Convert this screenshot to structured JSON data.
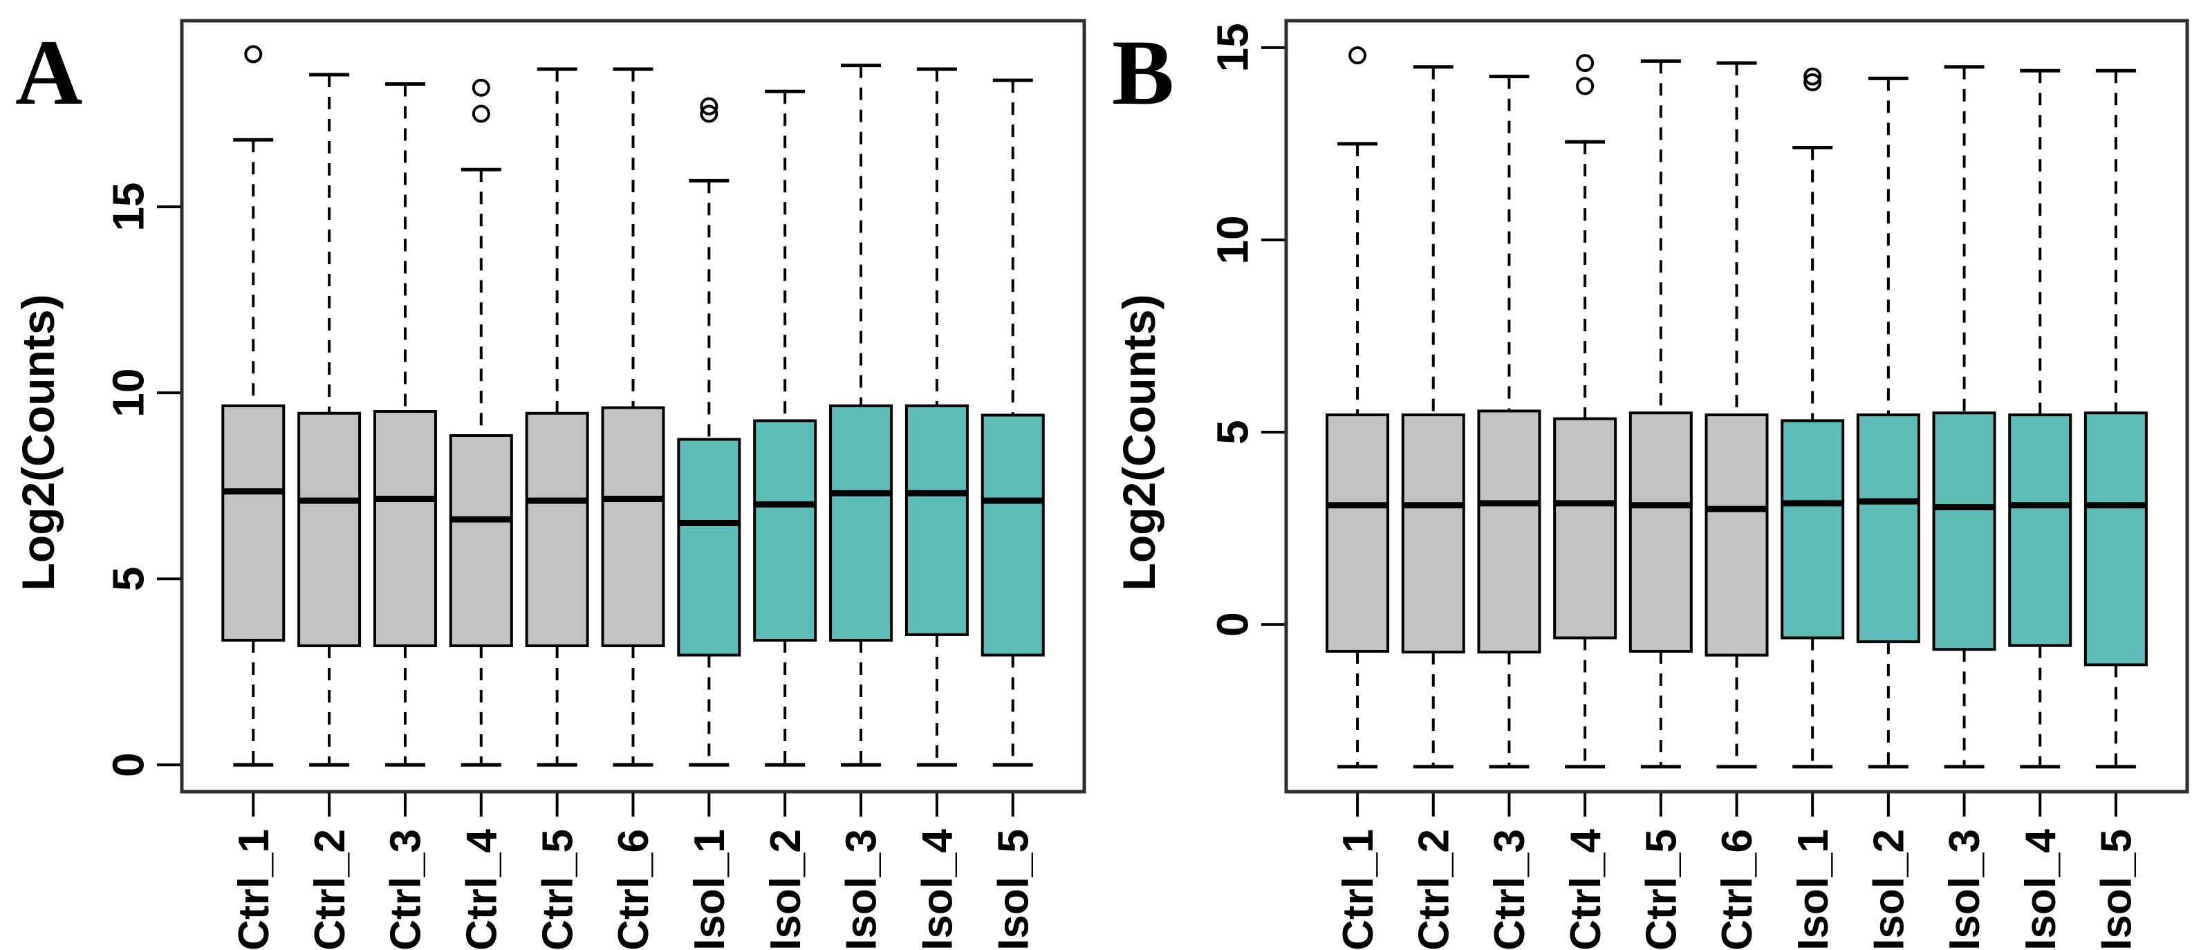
{
  "figure": {
    "background_color": "#ffffff",
    "panel_count": 2
  },
  "style": {
    "control_box_fill": "#C2C2C2",
    "isolation_box_fill": "#5EBDB9",
    "line_color": "#000000",
    "frame_color": "#2e2e2e"
  },
  "chart_data": [
    {
      "type": "boxplot",
      "panel_label": "A",
      "ylabel": "Log2(Counts)",
      "yticks": [
        0,
        5,
        10,
        15
      ],
      "ylim": [
        -0.72,
        20.0
      ],
      "grid": false,
      "categories": [
        "Ctrl_1",
        "Ctrl_2",
        "Ctrl_3",
        "Ctrl_4",
        "Ctrl_5",
        "Ctrl_6",
        "Isol_1",
        "Isol_2",
        "Isol_3",
        "Isol_4",
        "Isol_5"
      ],
      "boxes": [
        {
          "label": "Ctrl_1",
          "group": "control",
          "whisker_low": 0.0,
          "q1": 3.35,
          "median": 7.35,
          "q3": 9.65,
          "whisker_high": 16.8,
          "outliers": [
            19.1
          ]
        },
        {
          "label": "Ctrl_2",
          "group": "control",
          "whisker_low": 0.0,
          "q1": 3.2,
          "median": 7.1,
          "q3": 9.45,
          "whisker_high": 18.55,
          "outliers": []
        },
        {
          "label": "Ctrl_3",
          "group": "control",
          "whisker_low": 0.0,
          "q1": 3.2,
          "median": 7.15,
          "q3": 9.5,
          "whisker_high": 18.3,
          "outliers": []
        },
        {
          "label": "Ctrl_4",
          "group": "control",
          "whisker_low": 0.0,
          "q1": 3.2,
          "median": 6.6,
          "q3": 8.85,
          "whisker_high": 16.0,
          "outliers": [
            18.2,
            17.5
          ]
        },
        {
          "label": "Ctrl_5",
          "group": "control",
          "whisker_low": 0.0,
          "q1": 3.2,
          "median": 7.1,
          "q3": 9.45,
          "whisker_high": 18.7,
          "outliers": []
        },
        {
          "label": "Ctrl_6",
          "group": "control",
          "whisker_low": 0.0,
          "q1": 3.2,
          "median": 7.15,
          "q3": 9.6,
          "whisker_high": 18.7,
          "outliers": []
        },
        {
          "label": "Isol_1",
          "group": "isolation",
          "whisker_low": 0.0,
          "q1": 2.95,
          "median": 6.5,
          "q3": 8.75,
          "whisker_high": 15.7,
          "outliers": [
            17.7,
            17.5
          ]
        },
        {
          "label": "Isol_2",
          "group": "isolation",
          "whisker_low": 0.0,
          "q1": 3.35,
          "median": 7.0,
          "q3": 9.25,
          "whisker_high": 18.1,
          "outliers": []
        },
        {
          "label": "Isol_3",
          "group": "isolation",
          "whisker_low": 0.0,
          "q1": 3.35,
          "median": 7.3,
          "q3": 9.65,
          "whisker_high": 18.8,
          "outliers": []
        },
        {
          "label": "Isol_4",
          "group": "isolation",
          "whisker_low": 0.0,
          "q1": 3.5,
          "median": 7.3,
          "q3": 9.65,
          "whisker_high": 18.7,
          "outliers": []
        },
        {
          "label": "Isol_5",
          "group": "isolation",
          "whisker_low": 0.0,
          "q1": 2.95,
          "median": 7.1,
          "q3": 9.4,
          "whisker_high": 18.4,
          "outliers": []
        }
      ]
    },
    {
      "type": "boxplot",
      "panel_label": "B",
      "ylabel": "Log2(Counts)",
      "yticks": [
        0,
        5,
        10,
        15
      ],
      "ylim": [
        -4.35,
        15.7
      ],
      "grid": false,
      "categories": [
        "Ctrl_1",
        "Ctrl_2",
        "Ctrl_3",
        "Ctrl_4",
        "Ctrl_5",
        "Ctrl_6",
        "Isol_1",
        "Isol_2",
        "Isol_3",
        "Isol_4",
        "Isol_5"
      ],
      "boxes": [
        {
          "label": "Ctrl_1",
          "group": "control",
          "whisker_low": -3.7,
          "q1": -0.7,
          "median": 3.1,
          "q3": 5.45,
          "whisker_high": 12.5,
          "outliers": [
            14.8
          ]
        },
        {
          "label": "Ctrl_2",
          "group": "control",
          "whisker_low": -3.7,
          "q1": -0.72,
          "median": 3.1,
          "q3": 5.45,
          "whisker_high": 14.5,
          "outliers": []
        },
        {
          "label": "Ctrl_3",
          "group": "control",
          "whisker_low": -3.7,
          "q1": -0.72,
          "median": 3.15,
          "q3": 5.55,
          "whisker_high": 14.25,
          "outliers": []
        },
        {
          "label": "Ctrl_4",
          "group": "control",
          "whisker_low": -3.7,
          "q1": -0.35,
          "median": 3.15,
          "q3": 5.35,
          "whisker_high": 12.55,
          "outliers": [
            14.6,
            14.0
          ]
        },
        {
          "label": "Ctrl_5",
          "group": "control",
          "whisker_low": -3.7,
          "q1": -0.7,
          "median": 3.1,
          "q3": 5.5,
          "whisker_high": 14.65,
          "outliers": []
        },
        {
          "label": "Ctrl_6",
          "group": "control",
          "whisker_low": -3.7,
          "q1": -0.8,
          "median": 3.0,
          "q3": 5.45,
          "whisker_high": 14.6,
          "outliers": []
        },
        {
          "label": "Isol_1",
          "group": "isolation",
          "whisker_low": -3.7,
          "q1": -0.35,
          "median": 3.15,
          "q3": 5.3,
          "whisker_high": 12.4,
          "outliers": [
            14.25,
            14.1
          ]
        },
        {
          "label": "Isol_2",
          "group": "isolation",
          "whisker_low": -3.7,
          "q1": -0.45,
          "median": 3.2,
          "q3": 5.45,
          "whisker_high": 14.2,
          "outliers": []
        },
        {
          "label": "Isol_3",
          "group": "isolation",
          "whisker_low": -3.7,
          "q1": -0.65,
          "median": 3.05,
          "q3": 5.5,
          "whisker_high": 14.5,
          "outliers": []
        },
        {
          "label": "Isol_4",
          "group": "isolation",
          "whisker_low": -3.7,
          "q1": -0.55,
          "median": 3.1,
          "q3": 5.45,
          "whisker_high": 14.4,
          "outliers": []
        },
        {
          "label": "Isol_5",
          "group": "isolation",
          "whisker_low": -3.7,
          "q1": -1.05,
          "median": 3.1,
          "q3": 5.5,
          "whisker_high": 14.4,
          "outliers": []
        }
      ]
    }
  ]
}
